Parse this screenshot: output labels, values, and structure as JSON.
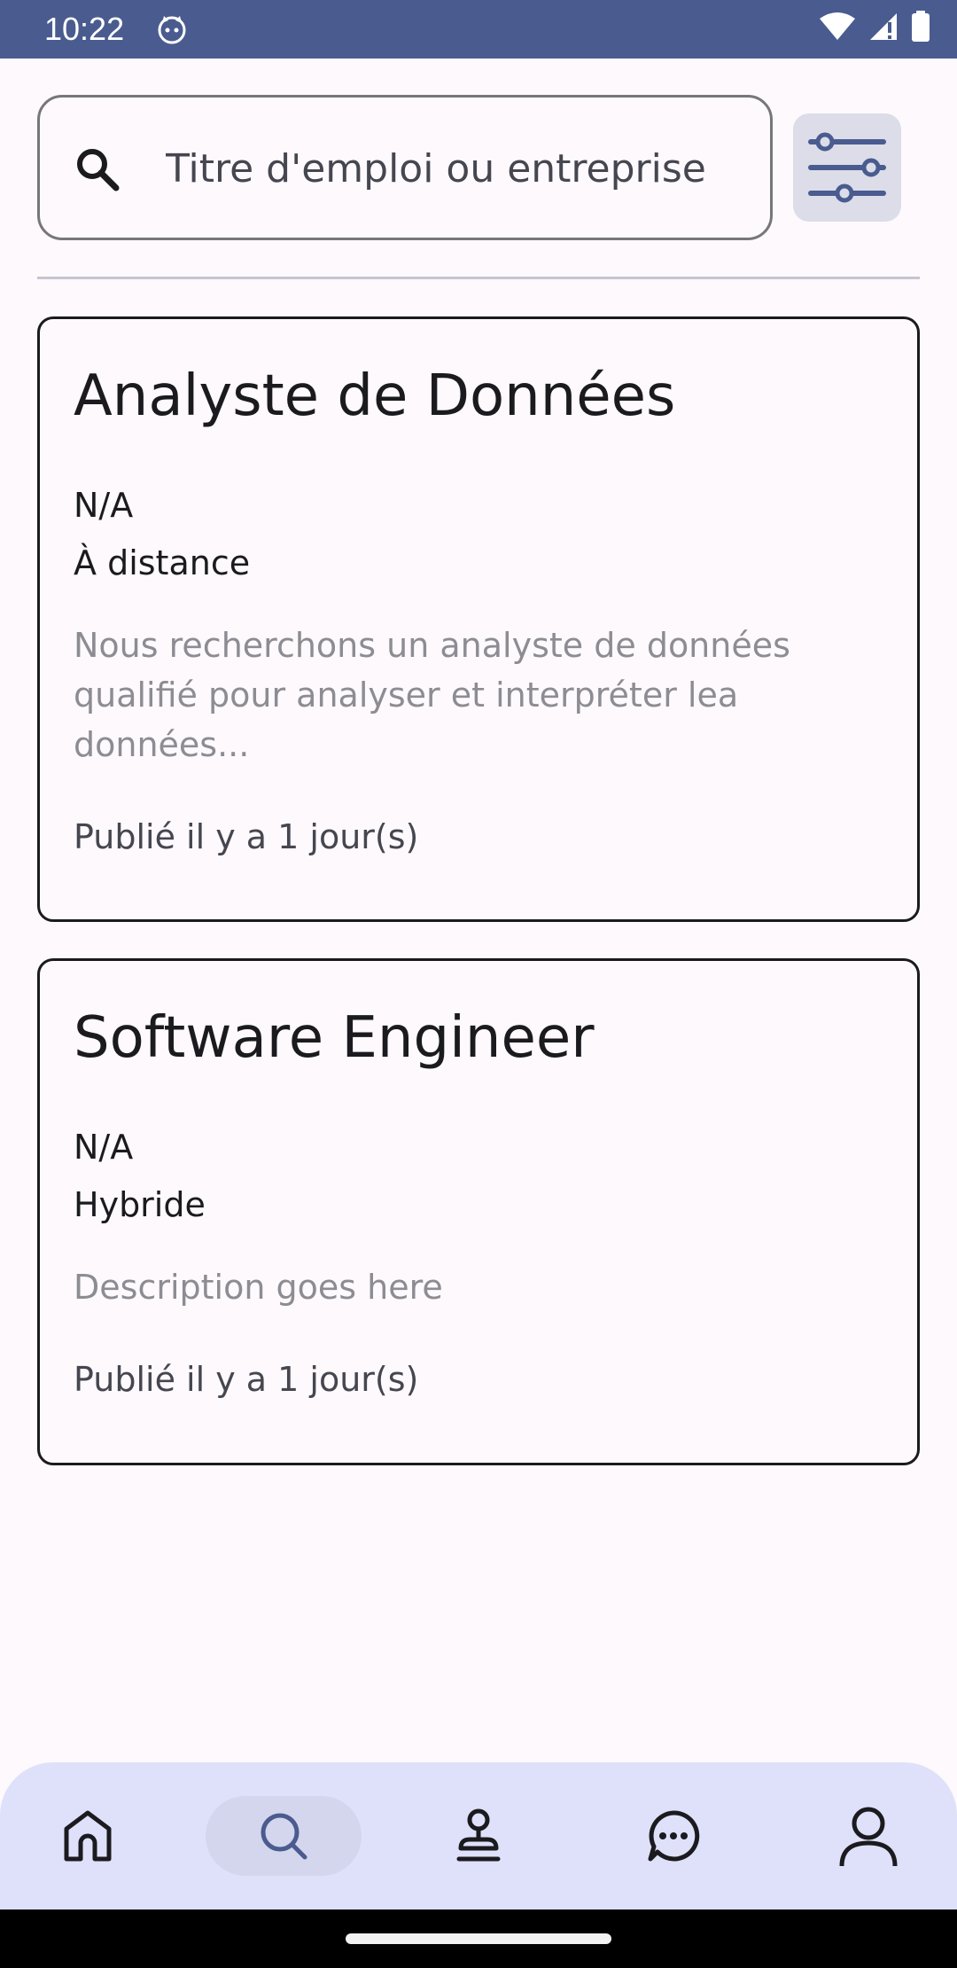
{
  "status_bar": {
    "time": "10:22"
  },
  "search": {
    "placeholder": "Titre d'emploi ou entreprise"
  },
  "jobs": [
    {
      "title": "Analyste de Données",
      "company": "N/A",
      "work_type": "À distance",
      "description": "Nous recherchons un analyste de données qualifié pour analyser et interpréter lea données...",
      "posted": "Publié il y a 1 jour(s)"
    },
    {
      "title": "Software Engineer",
      "company": "N/A",
      "work_type": "Hybride",
      "description": "Description goes here",
      "posted": "Publié il y a 1 jour(s)"
    }
  ],
  "bottom_nav": {
    "items": [
      "home-icon",
      "search-icon",
      "stamp-icon",
      "chat-icon",
      "profile-icon"
    ],
    "active": "search-icon"
  },
  "colors": {
    "status_bar": "#4a5b8f",
    "background": "#fdf9fd",
    "nav_background": "#dee1f9",
    "filter_button": "#dcdde9",
    "accent": "#4a5b8f"
  }
}
